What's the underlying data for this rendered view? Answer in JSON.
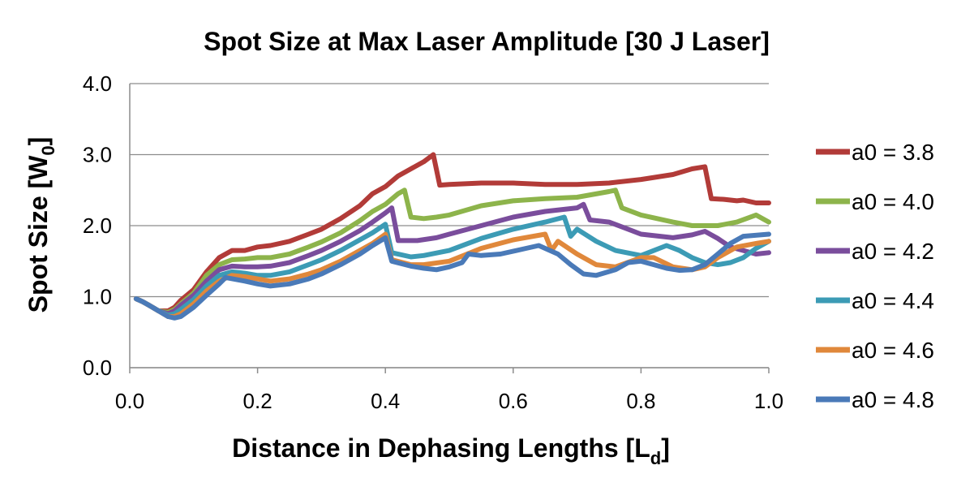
{
  "chart_data": {
    "type": "line",
    "title": "Spot Size at Max Laser Amplitude [30 J Laser]",
    "xlabel_main": "Distance in Dephasing Lengths [L",
    "xlabel_sub": "d",
    "xlabel_end": "]",
    "ylabel_main": "Spot Size [W",
    "ylabel_sub": "0",
    "ylabel_end": "]",
    "xlim": [
      0,
      1
    ],
    "ylim": [
      0,
      4
    ],
    "x_ticks": [
      "0.0",
      "0.2",
      "0.4",
      "0.6",
      "0.8",
      "1.0"
    ],
    "y_ticks": [
      "0.0",
      "1.0",
      "2.0",
      "3.0",
      "4.0"
    ],
    "grid": true,
    "legend_position": "right",
    "series": [
      {
        "name": "a0 = 3.8",
        "color": "#b23b38",
        "points": [
          [
            0.01,
            0.97
          ],
          [
            0.02,
            0.93
          ],
          [
            0.03,
            0.88
          ],
          [
            0.045,
            0.8
          ],
          [
            0.06,
            0.8
          ],
          [
            0.07,
            0.85
          ],
          [
            0.08,
            0.95
          ],
          [
            0.1,
            1.1
          ],
          [
            0.12,
            1.35
          ],
          [
            0.14,
            1.55
          ],
          [
            0.16,
            1.65
          ],
          [
            0.18,
            1.65
          ],
          [
            0.2,
            1.7
          ],
          [
            0.22,
            1.72
          ],
          [
            0.25,
            1.78
          ],
          [
            0.28,
            1.88
          ],
          [
            0.3,
            1.95
          ],
          [
            0.33,
            2.1
          ],
          [
            0.36,
            2.28
          ],
          [
            0.38,
            2.45
          ],
          [
            0.4,
            2.55
          ],
          [
            0.42,
            2.7
          ],
          [
            0.44,
            2.8
          ],
          [
            0.46,
            2.9
          ],
          [
            0.475,
            3.0
          ],
          [
            0.485,
            2.57
          ],
          [
            0.5,
            2.58
          ],
          [
            0.55,
            2.6
          ],
          [
            0.6,
            2.6
          ],
          [
            0.65,
            2.58
          ],
          [
            0.7,
            2.58
          ],
          [
            0.75,
            2.6
          ],
          [
            0.8,
            2.65
          ],
          [
            0.85,
            2.72
          ],
          [
            0.88,
            2.8
          ],
          [
            0.9,
            2.83
          ],
          [
            0.91,
            2.38
          ],
          [
            0.93,
            2.37
          ],
          [
            0.95,
            2.35
          ],
          [
            0.96,
            2.36
          ],
          [
            0.98,
            2.32
          ],
          [
            1.0,
            2.32
          ]
        ]
      },
      {
        "name": "a0 = 4.0",
        "color": "#8db44b",
        "points": [
          [
            0.01,
            0.97
          ],
          [
            0.02,
            0.93
          ],
          [
            0.03,
            0.88
          ],
          [
            0.045,
            0.8
          ],
          [
            0.06,
            0.78
          ],
          [
            0.07,
            0.82
          ],
          [
            0.08,
            0.9
          ],
          [
            0.1,
            1.05
          ],
          [
            0.12,
            1.3
          ],
          [
            0.14,
            1.45
          ],
          [
            0.16,
            1.52
          ],
          [
            0.18,
            1.53
          ],
          [
            0.2,
            1.55
          ],
          [
            0.22,
            1.55
          ],
          [
            0.25,
            1.6
          ],
          [
            0.28,
            1.7
          ],
          [
            0.3,
            1.77
          ],
          [
            0.33,
            1.9
          ],
          [
            0.36,
            2.07
          ],
          [
            0.38,
            2.2
          ],
          [
            0.4,
            2.3
          ],
          [
            0.42,
            2.45
          ],
          [
            0.43,
            2.5
          ],
          [
            0.44,
            2.12
          ],
          [
            0.46,
            2.1
          ],
          [
            0.48,
            2.12
          ],
          [
            0.5,
            2.15
          ],
          [
            0.55,
            2.28
          ],
          [
            0.6,
            2.35
          ],
          [
            0.65,
            2.38
          ],
          [
            0.7,
            2.4
          ],
          [
            0.75,
            2.48
          ],
          [
            0.76,
            2.5
          ],
          [
            0.77,
            2.25
          ],
          [
            0.8,
            2.15
          ],
          [
            0.85,
            2.05
          ],
          [
            0.88,
            2.0
          ],
          [
            0.9,
            2.0
          ],
          [
            0.92,
            2.0
          ],
          [
            0.95,
            2.05
          ],
          [
            0.98,
            2.15
          ],
          [
            1.0,
            2.05
          ]
        ]
      },
      {
        "name": "a0 = 4.2",
        "color": "#7a4d9c",
        "points": [
          [
            0.01,
            0.97
          ],
          [
            0.02,
            0.93
          ],
          [
            0.03,
            0.88
          ],
          [
            0.045,
            0.8
          ],
          [
            0.06,
            0.76
          ],
          [
            0.07,
            0.8
          ],
          [
            0.08,
            0.88
          ],
          [
            0.1,
            1.02
          ],
          [
            0.12,
            1.22
          ],
          [
            0.14,
            1.38
          ],
          [
            0.16,
            1.43
          ],
          [
            0.18,
            1.42
          ],
          [
            0.2,
            1.42
          ],
          [
            0.22,
            1.43
          ],
          [
            0.25,
            1.48
          ],
          [
            0.28,
            1.58
          ],
          [
            0.3,
            1.65
          ],
          [
            0.33,
            1.78
          ],
          [
            0.36,
            1.93
          ],
          [
            0.38,
            2.05
          ],
          [
            0.4,
            2.18
          ],
          [
            0.41,
            2.25
          ],
          [
            0.42,
            1.79
          ],
          [
            0.45,
            1.79
          ],
          [
            0.48,
            1.83
          ],
          [
            0.5,
            1.88
          ],
          [
            0.55,
            2.0
          ],
          [
            0.6,
            2.12
          ],
          [
            0.65,
            2.2
          ],
          [
            0.7,
            2.25
          ],
          [
            0.71,
            2.3
          ],
          [
            0.72,
            2.08
          ],
          [
            0.75,
            2.05
          ],
          [
            0.78,
            1.95
          ],
          [
            0.8,
            1.88
          ],
          [
            0.85,
            1.83
          ],
          [
            0.88,
            1.87
          ],
          [
            0.9,
            1.92
          ],
          [
            0.92,
            1.82
          ],
          [
            0.94,
            1.7
          ],
          [
            0.96,
            1.65
          ],
          [
            0.98,
            1.6
          ],
          [
            1.0,
            1.62
          ]
        ]
      },
      {
        "name": "a0 = 4.4",
        "color": "#3c9bb5",
        "points": [
          [
            0.01,
            0.97
          ],
          [
            0.02,
            0.93
          ],
          [
            0.03,
            0.88
          ],
          [
            0.045,
            0.8
          ],
          [
            0.06,
            0.74
          ],
          [
            0.07,
            0.76
          ],
          [
            0.08,
            0.82
          ],
          [
            0.1,
            0.96
          ],
          [
            0.12,
            1.15
          ],
          [
            0.14,
            1.3
          ],
          [
            0.16,
            1.35
          ],
          [
            0.18,
            1.33
          ],
          [
            0.2,
            1.3
          ],
          [
            0.22,
            1.3
          ],
          [
            0.25,
            1.35
          ],
          [
            0.28,
            1.45
          ],
          [
            0.3,
            1.52
          ],
          [
            0.33,
            1.65
          ],
          [
            0.36,
            1.8
          ],
          [
            0.38,
            1.9
          ],
          [
            0.4,
            2.02
          ],
          [
            0.41,
            1.62
          ],
          [
            0.44,
            1.56
          ],
          [
            0.46,
            1.58
          ],
          [
            0.5,
            1.65
          ],
          [
            0.55,
            1.82
          ],
          [
            0.6,
            1.95
          ],
          [
            0.65,
            2.05
          ],
          [
            0.68,
            2.12
          ],
          [
            0.69,
            1.85
          ],
          [
            0.7,
            1.95
          ],
          [
            0.73,
            1.78
          ],
          [
            0.76,
            1.65
          ],
          [
            0.8,
            1.58
          ],
          [
            0.84,
            1.72
          ],
          [
            0.86,
            1.65
          ],
          [
            0.88,
            1.55
          ],
          [
            0.9,
            1.48
          ],
          [
            0.92,
            1.45
          ],
          [
            0.94,
            1.48
          ],
          [
            0.96,
            1.55
          ],
          [
            0.98,
            1.68
          ],
          [
            1.0,
            1.78
          ]
        ]
      },
      {
        "name": "a0 = 4.6",
        "color": "#e0883b",
        "points": [
          [
            0.01,
            0.97
          ],
          [
            0.02,
            0.93
          ],
          [
            0.03,
            0.88
          ],
          [
            0.045,
            0.8
          ],
          [
            0.06,
            0.72
          ],
          [
            0.07,
            0.72
          ],
          [
            0.08,
            0.76
          ],
          [
            0.1,
            0.9
          ],
          [
            0.12,
            1.08
          ],
          [
            0.14,
            1.22
          ],
          [
            0.16,
            1.3
          ],
          [
            0.18,
            1.28
          ],
          [
            0.2,
            1.25
          ],
          [
            0.22,
            1.22
          ],
          [
            0.25,
            1.25
          ],
          [
            0.28,
            1.32
          ],
          [
            0.3,
            1.38
          ],
          [
            0.33,
            1.5
          ],
          [
            0.36,
            1.65
          ],
          [
            0.38,
            1.75
          ],
          [
            0.4,
            1.88
          ],
          [
            0.41,
            1.52
          ],
          [
            0.44,
            1.45
          ],
          [
            0.46,
            1.45
          ],
          [
            0.5,
            1.5
          ],
          [
            0.55,
            1.68
          ],
          [
            0.6,
            1.8
          ],
          [
            0.65,
            1.88
          ],
          [
            0.66,
            1.65
          ],
          [
            0.67,
            1.78
          ],
          [
            0.7,
            1.6
          ],
          [
            0.73,
            1.45
          ],
          [
            0.76,
            1.42
          ],
          [
            0.8,
            1.55
          ],
          [
            0.82,
            1.55
          ],
          [
            0.85,
            1.42
          ],
          [
            0.88,
            1.38
          ],
          [
            0.9,
            1.42
          ],
          [
            0.92,
            1.55
          ],
          [
            0.95,
            1.7
          ],
          [
            0.98,
            1.75
          ],
          [
            1.0,
            1.78
          ]
        ]
      },
      {
        "name": "a0 = 4.8",
        "color": "#4a7ab8",
        "points": [
          [
            0.01,
            0.97
          ],
          [
            0.02,
            0.93
          ],
          [
            0.03,
            0.88
          ],
          [
            0.045,
            0.8
          ],
          [
            0.06,
            0.72
          ],
          [
            0.07,
            0.7
          ],
          [
            0.08,
            0.72
          ],
          [
            0.1,
            0.85
          ],
          [
            0.12,
            1.02
          ],
          [
            0.14,
            1.18
          ],
          [
            0.15,
            1.27
          ],
          [
            0.18,
            1.22
          ],
          [
            0.2,
            1.18
          ],
          [
            0.22,
            1.15
          ],
          [
            0.25,
            1.18
          ],
          [
            0.28,
            1.25
          ],
          [
            0.3,
            1.32
          ],
          [
            0.33,
            1.45
          ],
          [
            0.36,
            1.6
          ],
          [
            0.38,
            1.72
          ],
          [
            0.4,
            1.83
          ],
          [
            0.41,
            1.5
          ],
          [
            0.44,
            1.43
          ],
          [
            0.46,
            1.4
          ],
          [
            0.48,
            1.38
          ],
          [
            0.5,
            1.42
          ],
          [
            0.52,
            1.48
          ],
          [
            0.53,
            1.6
          ],
          [
            0.55,
            1.58
          ],
          [
            0.58,
            1.6
          ],
          [
            0.62,
            1.68
          ],
          [
            0.64,
            1.72
          ],
          [
            0.67,
            1.6
          ],
          [
            0.69,
            1.45
          ],
          [
            0.71,
            1.32
          ],
          [
            0.73,
            1.3
          ],
          [
            0.76,
            1.38
          ],
          [
            0.78,
            1.48
          ],
          [
            0.8,
            1.5
          ],
          [
            0.82,
            1.45
          ],
          [
            0.84,
            1.4
          ],
          [
            0.86,
            1.37
          ],
          [
            0.88,
            1.38
          ],
          [
            0.9,
            1.45
          ],
          [
            0.92,
            1.6
          ],
          [
            0.94,
            1.75
          ],
          [
            0.96,
            1.85
          ],
          [
            1.0,
            1.88
          ]
        ]
      }
    ]
  }
}
